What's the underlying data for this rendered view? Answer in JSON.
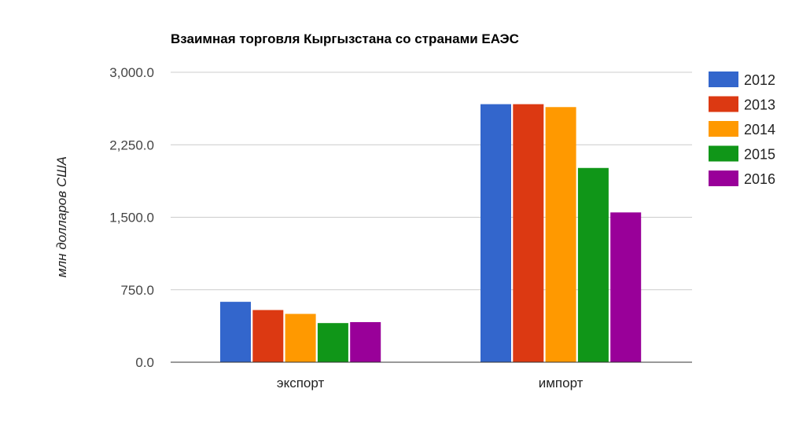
{
  "chart_data": {
    "type": "bar",
    "title": "Взаимная торговля Кыргызстана со странами ЕАЭС",
    "xlabel": "",
    "ylabel": "млн долларов США",
    "categories": [
      "экспорт",
      "импорт"
    ],
    "series": [
      {
        "name": "2012",
        "color": "#3366cc",
        "values": [
          625,
          2670
        ]
      },
      {
        "name": "2013",
        "color": "#dc3912",
        "values": [
          540,
          2670
        ]
      },
      {
        "name": "2014",
        "color": "#ff9900",
        "values": [
          500,
          2640
        ]
      },
      {
        "name": "2015",
        "color": "#109618",
        "values": [
          405,
          2010
        ]
      },
      {
        "name": "2016",
        "color": "#990099",
        "values": [
          415,
          1550
        ]
      }
    ],
    "ylim": [
      0,
      3000
    ],
    "yticks": [
      {
        "value": 0,
        "label": "0.0"
      },
      {
        "value": 750,
        "label": "750.0"
      },
      {
        "value": 1500,
        "label": "1,500.0"
      },
      {
        "value": 2250,
        "label": "2,250.0"
      },
      {
        "value": 3000,
        "label": "3,000.0"
      }
    ],
    "grid": true,
    "legend_position": "right"
  }
}
